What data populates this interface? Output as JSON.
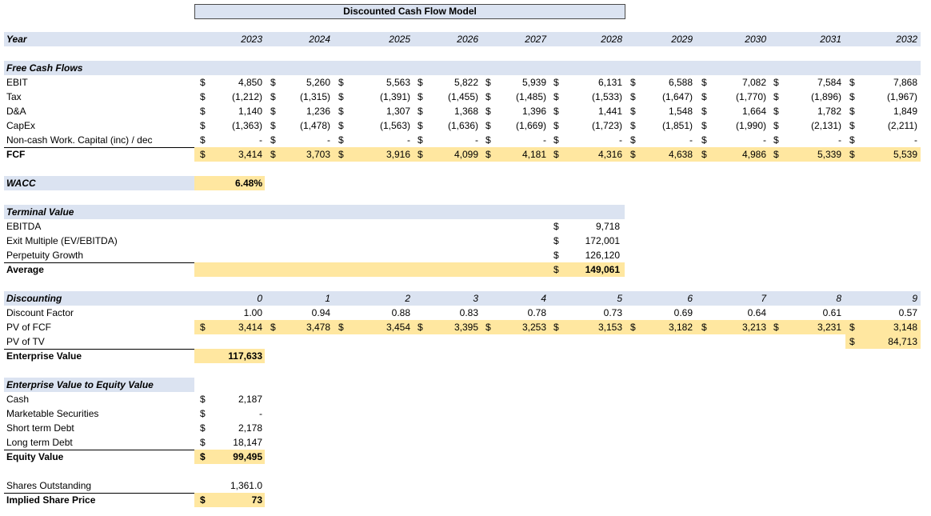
{
  "title": "Discounted Cash Flow Model",
  "header": {
    "year_label": "Year",
    "years": [
      "2023",
      "2024",
      "2025",
      "2026",
      "2027",
      "2028",
      "2029",
      "2030",
      "2031",
      "2032"
    ]
  },
  "fcf": {
    "section_label": "Free Cash Flows",
    "rows": [
      {
        "label": "EBIT",
        "values": [
          "4,850",
          "5,260",
          "5,563",
          "5,822",
          "5,939",
          "6,131",
          "6,588",
          "7,082",
          "7,584",
          "7,868"
        ]
      },
      {
        "label": "Tax",
        "values": [
          "(1,212)",
          "(1,315)",
          "(1,391)",
          "(1,455)",
          "(1,485)",
          "(1,533)",
          "(1,647)",
          "(1,770)",
          "(1,896)",
          "(1,967)"
        ]
      },
      {
        "label": "D&A",
        "values": [
          "1,140",
          "1,236",
          "1,307",
          "1,368",
          "1,396",
          "1,441",
          "1,548",
          "1,664",
          "1,782",
          "1,849"
        ]
      },
      {
        "label": "CapEx",
        "values": [
          "(1,363)",
          "(1,478)",
          "(1,563)",
          "(1,636)",
          "(1,669)",
          "(1,723)",
          "(1,851)",
          "(1,990)",
          "(2,131)",
          "(2,211)"
        ]
      },
      {
        "label": "Non-cash Work. Capital (inc) / dec",
        "values": [
          "-",
          "-",
          "-",
          "-",
          "-",
          "-",
          "-",
          "-",
          "-",
          "-"
        ]
      }
    ],
    "total": {
      "label": "FCF",
      "values": [
        "3,414",
        "3,703",
        "3,916",
        "4,099",
        "4,181",
        "4,316",
        "4,638",
        "4,986",
        "5,339",
        "5,539"
      ]
    }
  },
  "currency": "$",
  "wacc": {
    "label": "WACC",
    "value": "6.48%"
  },
  "terminal": {
    "section_label": "Terminal Value",
    "rows": [
      {
        "label": "EBITDA",
        "value": "9,718"
      },
      {
        "label": "Exit Multiple (EV/EBITDA)",
        "value": "172,001"
      },
      {
        "label": "Perpetuity Growth",
        "value": "126,120"
      }
    ],
    "average": {
      "label": "Average",
      "value": "149,061"
    }
  },
  "discounting": {
    "section_label": "Discounting",
    "periods": [
      "0",
      "1",
      "2",
      "3",
      "4",
      "5",
      "6",
      "7",
      "8",
      "9"
    ],
    "factor_label": "Discount Factor",
    "factors": [
      "1.00",
      "0.94",
      "0.88",
      "0.83",
      "0.78",
      "0.73",
      "0.69",
      "0.64",
      "0.61",
      "0.57"
    ],
    "pv_fcf_label": "PV of FCF",
    "pv_fcf": [
      "3,414",
      "3,478",
      "3,454",
      "3,395",
      "3,253",
      "3,153",
      "3,182",
      "3,213",
      "3,231",
      "3,148"
    ],
    "pv_tv_label": "PV of TV",
    "pv_tv": "84,713",
    "ev_label": "Enterprise Value",
    "ev_value": "117,633"
  },
  "equity": {
    "section_label": "Enterprise Value to Equity Value",
    "rows": [
      {
        "label": "Cash",
        "value": "2,187"
      },
      {
        "label": "Marketable Securities",
        "value": "-"
      },
      {
        "label": "Short term Debt",
        "value": "2,178"
      },
      {
        "label": "Long term Debt",
        "value": "18,147"
      }
    ],
    "total": {
      "label": "Equity Value",
      "value": "99,495"
    }
  },
  "shares": {
    "label": "Shares Outstanding",
    "value": "1,361.0"
  },
  "price": {
    "label": "Implied Share Price",
    "value": "73"
  }
}
